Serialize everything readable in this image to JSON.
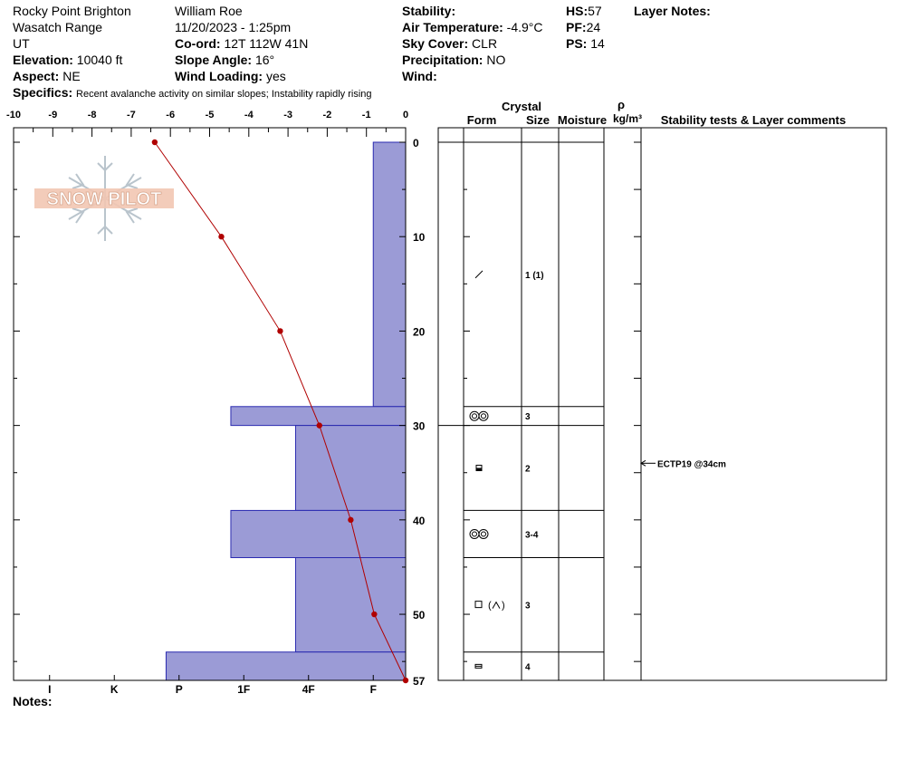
{
  "header": {
    "location": "Rocky Point Brighton",
    "range": "Wasatch Range",
    "state": "UT",
    "elevation_label": "Elevation:",
    "elevation": "10040 ft",
    "aspect_label": "Aspect:",
    "aspect": "NE",
    "observer": "William  Roe",
    "datetime": "11/20/2023 - 1:25pm",
    "coord_label": "Co-ord:",
    "coord": "12T 112W 41N",
    "slope_label": "Slope Angle:",
    "slope": "16°",
    "wind_loading_label": "Wind Loading:",
    "wind_loading": "yes",
    "stability_label": "Stability:",
    "air_temp_label": "Air Temperature:",
    "air_temp": "-4.9°C",
    "sky_label": "Sky Cover:",
    "sky": "CLR",
    "precip_label": "Precipitation:",
    "precip": "NO",
    "wind_label": "Wind:",
    "hs_label": "HS:",
    "hs": "57",
    "pf_label": "PF:",
    "pf": "24",
    "ps_label": "PS:",
    "ps": "14",
    "layer_notes_label": "Layer Notes:",
    "specifics_label": "Specifics:",
    "specifics": "Recent avalanche activity on similar slopes; Instability rapidly rising",
    "notes_label": "Notes:"
  },
  "logo_text": "SNOW PILOT",
  "table": {
    "crystal": "Crystal",
    "form": "Form",
    "size": "Size",
    "moisture": "Moisture",
    "rho": "ρ",
    "density_unit": "kg/m³",
    "comments": "Stability tests & Layer comments"
  },
  "chart_data": {
    "type": "line",
    "temp_axis": {
      "label_ticks": [
        -10,
        -9,
        -8,
        -7,
        -6,
        -5,
        -4,
        -3,
        -2,
        -1,
        0
      ],
      "range": [
        -10,
        0
      ]
    },
    "depth_axis": {
      "range": [
        0,
        57
      ],
      "label_ticks": [
        0,
        10,
        20,
        30,
        40,
        50,
        57
      ]
    },
    "hardness_axis": {
      "ticks": [
        "I",
        "K",
        "P",
        "1F",
        "4F",
        "F"
      ]
    },
    "temperature_profile": {
      "color": "#b00000",
      "points": [
        {
          "depth": 0,
          "temp": -6.4
        },
        {
          "depth": 10,
          "temp": -4.7
        },
        {
          "depth": 20,
          "temp": -3.2
        },
        {
          "depth": 30,
          "temp": -2.2
        },
        {
          "depth": 40,
          "temp": -1.4
        },
        {
          "depth": 50,
          "temp": -0.8
        },
        {
          "depth": 57,
          "temp": 0.0
        }
      ]
    },
    "hardness_profile": {
      "color": "#9b9bd6",
      "layers": [
        {
          "top": 0,
          "bottom": 28,
          "hardness_index": 0.5,
          "size": "1 (1)",
          "form": "decomposing"
        },
        {
          "top": 28,
          "bottom": 30,
          "hardness_index": 2.7,
          "size": "3",
          "form": "surface-hoar"
        },
        {
          "top": 30,
          "bottom": 39,
          "hardness_index": 1.7,
          "size": "2",
          "form": "rounded-faceted"
        },
        {
          "top": 39,
          "bottom": 44,
          "hardness_index": 2.7,
          "size": "3-4",
          "form": "surface-hoar"
        },
        {
          "top": 44,
          "bottom": 54,
          "hardness_index": 1.7,
          "size": "3",
          "form": "faceted-depth-hoar"
        },
        {
          "top": 54,
          "bottom": 57,
          "hardness_index": 3.7,
          "size": "4",
          "form": "faceted-rounding"
        }
      ]
    },
    "stability_tests": [
      {
        "depth": 34,
        "text": "ECTP19 @34cm"
      }
    ]
  }
}
